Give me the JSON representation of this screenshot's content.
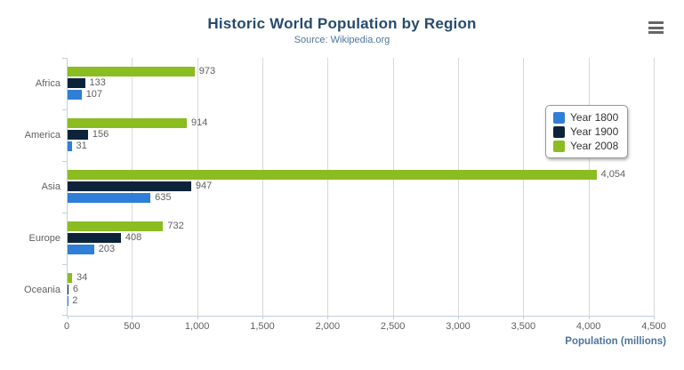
{
  "chart_data": {
    "type": "bar",
    "orientation": "horizontal",
    "title": "Historic World Population by Region",
    "subtitle": "Source: Wikipedia.org",
    "categories": [
      "Africa",
      "America",
      "Asia",
      "Europe",
      "Oceania"
    ],
    "series": [
      {
        "name": "Year 1800",
        "color": "#2f7ed8",
        "values": [
          107,
          31,
          635,
          203,
          2
        ]
      },
      {
        "name": "Year 1900",
        "color": "#0d233a",
        "values": [
          133,
          156,
          947,
          408,
          6
        ]
      },
      {
        "name": "Year 2008",
        "color": "#8bbc21",
        "values": [
          973,
          914,
          4054,
          732,
          34
        ]
      }
    ],
    "bar_display_order_top_to_bottom": [
      "Year 2008",
      "Year 1900",
      "Year 1800"
    ],
    "data_labels_shown": true,
    "xlabel": "Population (millions)",
    "ylabel": "",
    "xlim": [
      0,
      4500
    ],
    "x_ticks": [
      0,
      500,
      1000,
      1500,
      2000,
      2500,
      3000,
      3500,
      4000,
      4500
    ],
    "x_tick_labels": [
      "0",
      "500",
      "1,000",
      "1,500",
      "2,000",
      "2,500",
      "3,000",
      "3,500",
      "4,000",
      "4,500"
    ],
    "grid": true,
    "legend": {
      "position": "right-floating",
      "items": [
        "Year 1800",
        "Year 1900",
        "Year 2008"
      ]
    }
  },
  "colors": {
    "title_text": "#274b6d",
    "subtitle_text": "#4d759e",
    "axis_line": "#c0d0e0",
    "gridline": "#d8d8d8",
    "tick_label": "#606060",
    "data_label": "#606060",
    "category_label": "#606060",
    "axis_title": "#4d759e",
    "legend_border": "#999999",
    "legend_text": "#333333",
    "export_icon": "#666666",
    "background": "#ffffff"
  },
  "export_menu": {
    "icon": "hamburger-menu-icon",
    "tooltip": ""
  }
}
